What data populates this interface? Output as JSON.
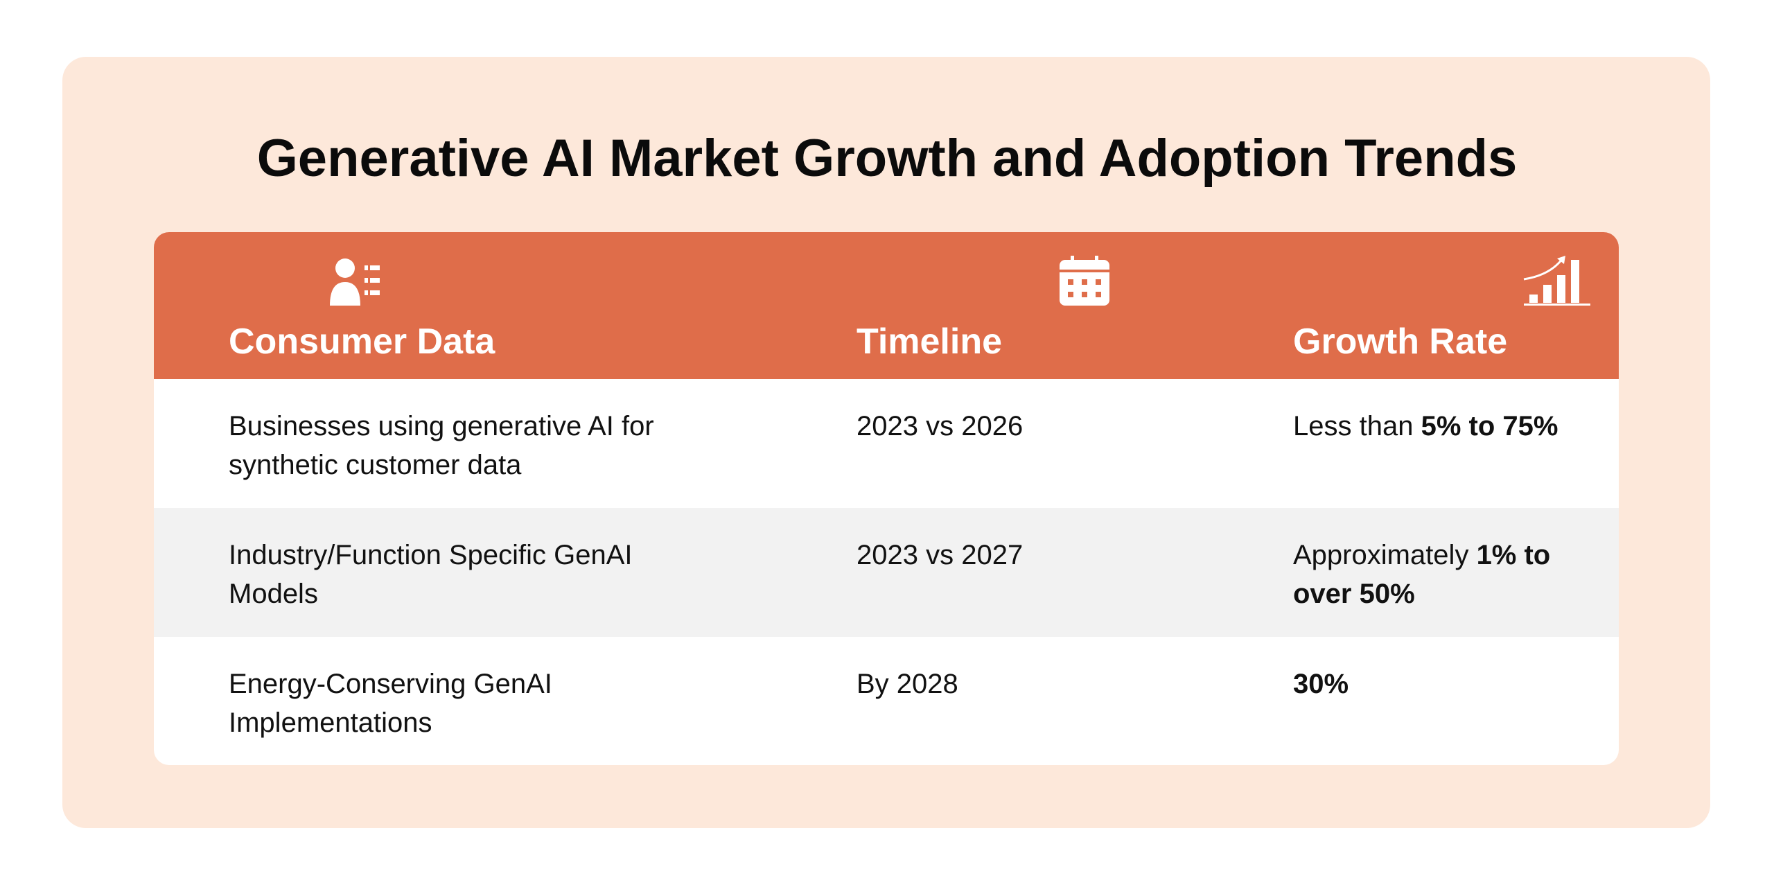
{
  "title": "Generative AI Market Growth and Adoption Trends",
  "columns": [
    {
      "label": "Consumer Data",
      "icon": "user-list-icon"
    },
    {
      "label": "Timeline",
      "icon": "calendar-icon"
    },
    {
      "label": "Growth Rate",
      "icon": "growth-chart-icon"
    }
  ],
  "rows": [
    {
      "data": "Businesses using generative AI for synthetic customer data",
      "timeline": "2023 vs 2026",
      "growth_prefix": "Less than ",
      "growth_bold": "5% to 75%"
    },
    {
      "data": "Industry/Function Specific GenAI Models",
      "timeline": "2023 vs 2027",
      "growth_prefix": "Approximately ",
      "growth_bold": "1% to over 50%"
    },
    {
      "data": "Energy-Conserving GenAI Implementations",
      "timeline": "By 2028",
      "growth_prefix": "",
      "growth_bold": "30%"
    }
  ],
  "colors": {
    "panel": "#fde8da",
    "header": "#df6d4a",
    "alt_row": "#f2f2f2"
  }
}
